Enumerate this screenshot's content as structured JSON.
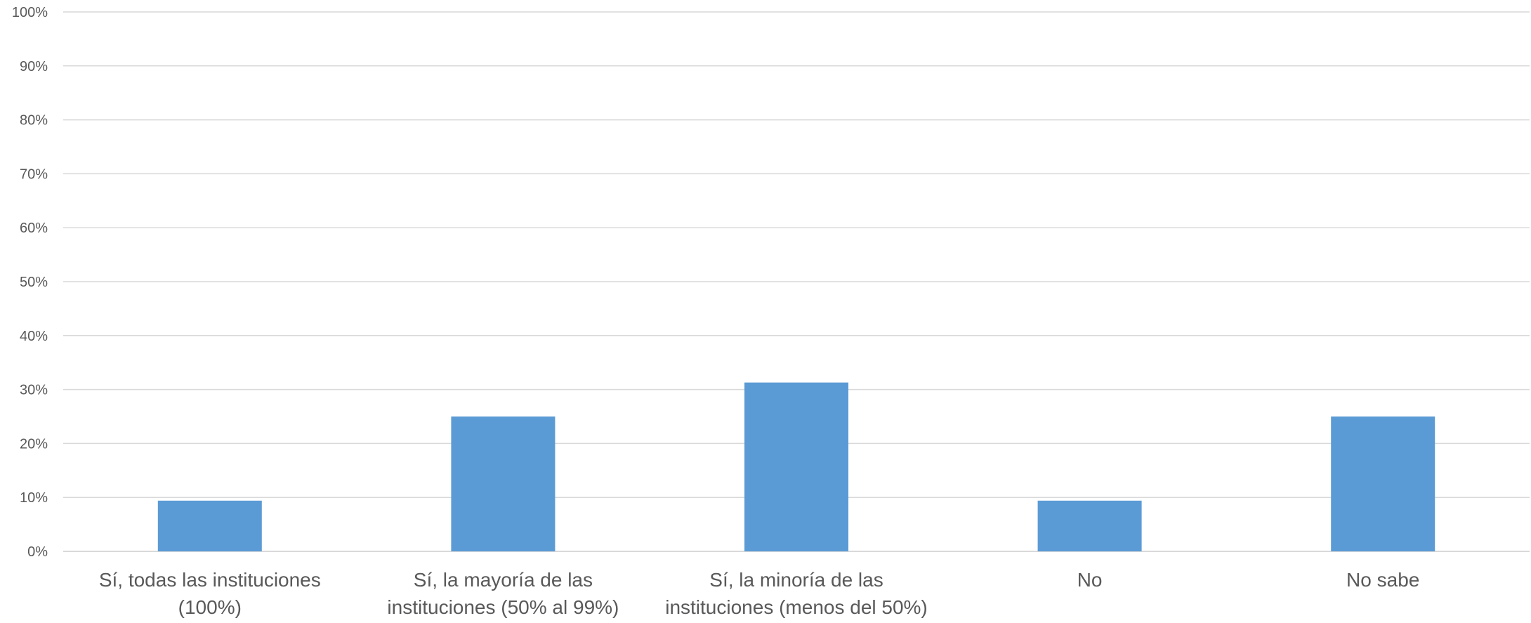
{
  "chart_data": {
    "type": "bar",
    "title": "",
    "xlabel": "",
    "ylabel": "",
    "categories": [
      [
        "Sí, todas las instituciones",
        "(100%)"
      ],
      [
        "Sí, la mayoría de las",
        "instituciones (50% al 99%)"
      ],
      [
        "Sí, la minoría de las",
        "instituciones (menos del 50%)"
      ],
      [
        "No"
      ],
      [
        "No sabe"
      ]
    ],
    "values": [
      9.4,
      25.0,
      31.3,
      9.4,
      25.0
    ],
    "ylim": [
      0,
      100
    ],
    "yticks": [
      "0%",
      "10%",
      "20%",
      "30%",
      "40%",
      "50%",
      "60%",
      "70%",
      "80%",
      "90%",
      "100%"
    ],
    "grid": true,
    "legend": "none",
    "colors": {
      "bar": "#5b9bd5",
      "grid": "#d9d9d9",
      "text": "#595959"
    }
  }
}
